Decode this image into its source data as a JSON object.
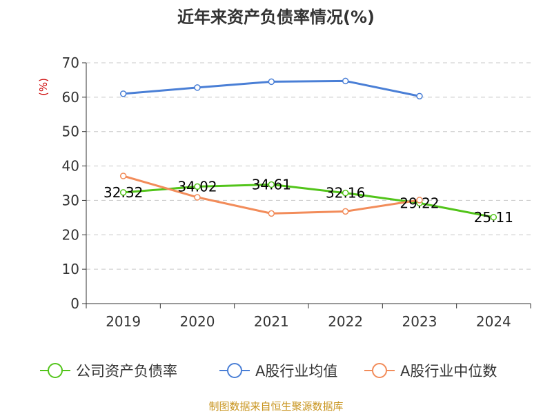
{
  "chart_data": {
    "type": "line",
    "title": "近年来资产负债率情况(%)",
    "unit_label": "(%)",
    "categories": [
      "2019",
      "2020",
      "2021",
      "2022",
      "2023",
      "2024"
    ],
    "ylim": [
      0,
      70
    ],
    "yticks": [
      0,
      10,
      20,
      30,
      40,
      50,
      60,
      70
    ],
    "grid": true,
    "legend_position": "bottom",
    "series": [
      {
        "name": "公司资产负债率",
        "color": "#52c41a",
        "values": [
          32.32,
          34.02,
          34.61,
          32.16,
          29.22,
          25.11
        ],
        "labels": [
          "32.32",
          "34.02",
          "34.61",
          "32.16",
          "29.22",
          "25.11"
        ]
      },
      {
        "name": "A股行业均值",
        "color": "#4a7fd6",
        "values": [
          61.0,
          62.8,
          64.5,
          64.7,
          60.3,
          null
        ]
      },
      {
        "name": "A股行业中位数",
        "color": "#f28c5a",
        "values": [
          37.1,
          30.9,
          26.2,
          26.8,
          30.1,
          null
        ]
      }
    ]
  },
  "source": "制图数据来自恒生聚源数据库"
}
